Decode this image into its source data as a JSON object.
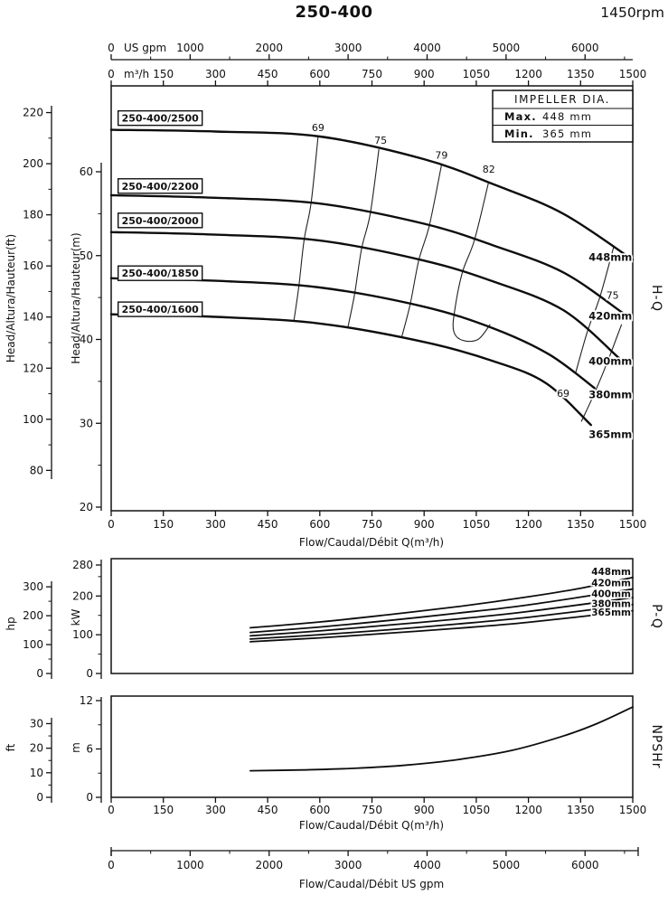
{
  "header": {
    "title": "250-400",
    "rpm": "1450rpm"
  },
  "chart_data": [
    {
      "id": "hq",
      "type": "line",
      "section_label": "H-Q",
      "x_top": {
        "unit": "US gpm",
        "min": 0,
        "max": 6604,
        "ticks": [
          0,
          1000,
          2000,
          3000,
          4000,
          5000,
          6000
        ],
        "minor": [
          500,
          1500,
          2500,
          3500,
          4500,
          5500,
          6500
        ]
      },
      "x": {
        "unit": "m³/h",
        "label": "Flow/Caudal/Débit Q(m³/h)",
        "min": 0,
        "max": 1500,
        "ticks": [
          0,
          150,
          300,
          450,
          600,
          750,
          900,
          1050,
          1200,
          1350,
          1500
        ]
      },
      "y": {
        "unit": "m",
        "label": "Head/Altura/Hauteur(m)",
        "min": 20,
        "max": 60,
        "ticks": [
          20,
          30,
          40,
          50,
          60
        ],
        "minor": [
          25,
          35,
          45,
          55
        ]
      },
      "y2": {
        "unit": "ft",
        "label": "Head/Altura/Hauteur(ft)",
        "min": 80,
        "max": 220,
        "ticks": [
          80,
          100,
          120,
          140,
          160,
          180,
          200,
          220
        ],
        "minor": [
          90,
          110,
          130,
          150,
          170,
          190,
          210
        ]
      },
      "impeller_box": {
        "title": "IMPELLER DIA.",
        "rows": [
          {
            "label": "Max.",
            "value": "448 mm"
          },
          {
            "label": "Min.",
            "value": "365 mm"
          }
        ]
      },
      "curves": [
        {
          "model": "250-400/2500",
          "impeller": "448mm",
          "model_label_pos": [
            20,
            66.4
          ],
          "impeller_label_pos": [
            1498,
            49.8
          ],
          "points": [
            [
              0,
              65
            ],
            [
              300,
              64.8
            ],
            [
              600,
              64.2
            ],
            [
              900,
              61.5
            ],
            [
              1100,
              58.5
            ],
            [
              1300,
              55
            ],
            [
              1500,
              49.5
            ]
          ]
        },
        {
          "model": "250-400/2200",
          "impeller": "420mm",
          "model_label_pos": [
            20,
            58.3
          ],
          "impeller_label_pos": [
            1498,
            42.8
          ],
          "points": [
            [
              0,
              57.2
            ],
            [
              300,
              56.9
            ],
            [
              600,
              56.2
            ],
            [
              900,
              53.8
            ],
            [
              1100,
              51.2
            ],
            [
              1300,
              48
            ],
            [
              1470,
              43.2
            ]
          ]
        },
        {
          "model": "250-400/2000",
          "impeller": "400mm",
          "model_label_pos": [
            20,
            54.2
          ],
          "impeller_label_pos": [
            1498,
            37.4
          ],
          "points": [
            [
              0,
              52.8
            ],
            [
              300,
              52.5
            ],
            [
              600,
              51.8
            ],
            [
              900,
              49.4
            ],
            [
              1100,
              46.9
            ],
            [
              1300,
              43.5
            ],
            [
              1460,
              37.8
            ]
          ]
        },
        {
          "model": "250-400/1850",
          "impeller": "380mm",
          "model_label_pos": [
            20,
            47.9
          ],
          "impeller_label_pos": [
            1498,
            33.4
          ],
          "points": [
            [
              0,
              47.3
            ],
            [
              300,
              47
            ],
            [
              600,
              46.2
            ],
            [
              900,
              43.9
            ],
            [
              1100,
              41.3
            ],
            [
              1260,
              38.2
            ],
            [
              1390,
              34.2
            ]
          ]
        },
        {
          "model": "250-400/1600",
          "impeller": "365mm",
          "model_label_pos": [
            20,
            43.6
          ],
          "impeller_label_pos": [
            1498,
            28.7
          ],
          "points": [
            [
              0,
              43
            ],
            [
              300,
              42.7
            ],
            [
              600,
              41.9
            ],
            [
              900,
              39.7
            ],
            [
              1100,
              37.4
            ],
            [
              1250,
              34.8
            ],
            [
              1380,
              29.8
            ]
          ]
        }
      ],
      "efficiency_contours": [
        {
          "label": "69",
          "label_pos": [
            595,
            65.3
          ],
          "points": [
            [
              595,
              64.2
            ],
            [
              575,
              56.3
            ],
            [
              555,
              51.9
            ],
            [
              540,
              46.4
            ],
            [
              525,
              42.1
            ]
          ]
        },
        {
          "label": "75",
          "label_pos": [
            775,
            63.8
          ],
          "points": [
            [
              770,
              62.7
            ],
            [
              745,
              55.0
            ],
            [
              720,
              50.8
            ],
            [
              700,
              45.4
            ],
            [
              680,
              41.3
            ]
          ]
        },
        {
          "label": "79",
          "label_pos": [
            950,
            62.0
          ],
          "points": [
            [
              950,
              60.8
            ],
            [
              915,
              53.6
            ],
            [
              885,
              49.5
            ],
            [
              860,
              44.2
            ],
            [
              835,
              40.2
            ]
          ]
        },
        {
          "label": "82",
          "label_pos": [
            1086,
            60.3
          ],
          "points": [
            [
              1085,
              58.7
            ],
            [
              1045,
              51.9
            ],
            [
              1010,
              48.0
            ],
            [
              988,
              43.5
            ],
            [
              985,
              41.0
            ],
            [
              1010,
              39.9
            ],
            [
              1055,
              40.0
            ],
            [
              1090,
              41.8
            ]
          ]
        },
        {
          "label": "75",
          "label_pos": [
            1442,
            45.3
          ],
          "points": [
            [
              1445,
              51.0
            ],
            [
              1405,
              45.0
            ],
            [
              1370,
              41.0
            ],
            [
              1335,
              35.9
            ]
          ]
        },
        {
          "label": "69",
          "label_pos": [
            1300,
            33.6
          ],
          "points": [
            [
              1468,
              41.8
            ],
            [
              1428,
              37.4
            ],
            [
              1388,
              33.4
            ],
            [
              1352,
              30.2
            ]
          ]
        }
      ]
    },
    {
      "id": "pq",
      "type": "line",
      "section_label": "P-Q",
      "y": {
        "unit": "kW",
        "min": 0,
        "max": 280,
        "ticks": [
          0,
          100,
          200,
          280
        ],
        "minor": [
          50,
          150,
          250
        ]
      },
      "y2": {
        "unit": "hp",
        "min": 0,
        "max": 300,
        "ticks": [
          0,
          100,
          200,
          300
        ],
        "minor": [
          50,
          150,
          250
        ]
      },
      "curves": [
        {
          "impeller": "448mm",
          "label_kw": 263,
          "points": [
            [
              400,
              118
            ],
            [
              600,
              133
            ],
            [
              800,
              152
            ],
            [
              1000,
              173
            ],
            [
              1200,
              198
            ],
            [
              1350,
              220
            ],
            [
              1500,
              248
            ]
          ]
        },
        {
          "impeller": "420mm",
          "label_kw": 233,
          "points": [
            [
              400,
              106
            ],
            [
              600,
              120
            ],
            [
              800,
              137
            ],
            [
              1000,
              156
            ],
            [
              1200,
              177
            ],
            [
              1500,
              218
            ]
          ]
        },
        {
          "impeller": "400mm",
          "label_kw": 205,
          "points": [
            [
              400,
              97
            ],
            [
              600,
              110
            ],
            [
              800,
              125
            ],
            [
              1000,
              141
            ],
            [
              1200,
              160
            ],
            [
              1500,
              196
            ]
          ]
        },
        {
          "impeller": "380mm",
          "label_kw": 180,
          "points": [
            [
              400,
              89
            ],
            [
              600,
              100
            ],
            [
              800,
              113
            ],
            [
              1000,
              128
            ],
            [
              1200,
              145
            ],
            [
              1500,
              178
            ]
          ]
        },
        {
          "impeller": "365mm",
          "label_kw": 157,
          "points": [
            [
              400,
              82
            ],
            [
              600,
              92
            ],
            [
              800,
              104
            ],
            [
              1000,
              117
            ],
            [
              1200,
              132
            ],
            [
              1500,
              162
            ]
          ]
        }
      ]
    },
    {
      "id": "npshr",
      "type": "line",
      "section_label": "NPSHr",
      "x": {
        "unit": "m³/h",
        "label": "Flow/Caudal/Débit Q(m³/h)",
        "min": 0,
        "max": 1500,
        "ticks": [
          0,
          150,
          300,
          450,
          600,
          750,
          900,
          1050,
          1200,
          1350,
          1500
        ]
      },
      "y": {
        "unit": "m",
        "min": 0,
        "max": 12,
        "ticks": [
          0,
          6,
          12
        ],
        "minor": [
          3,
          9
        ]
      },
      "y2": {
        "unit": "ft",
        "min": 0,
        "max": 30,
        "ticks": [
          0,
          10,
          20,
          30
        ],
        "minor": [
          5,
          15,
          25
        ]
      },
      "curve": {
        "points": [
          [
            400,
            3.3
          ],
          [
            550,
            3.4
          ],
          [
            700,
            3.6
          ],
          [
            850,
            4.0
          ],
          [
            1000,
            4.7
          ],
          [
            1150,
            5.8
          ],
          [
            1300,
            7.6
          ],
          [
            1400,
            9.2
          ],
          [
            1500,
            11.2
          ]
        ]
      }
    },
    {
      "id": "usgpm_axis",
      "type": "axis",
      "label": "Flow/Caudal/Débit  US gpm",
      "unit": "US gpm",
      "min": 0,
      "max": 6604,
      "ticks": [
        0,
        1000,
        2000,
        3000,
        4000,
        5000,
        6000
      ],
      "minor": [
        500,
        1500,
        2500,
        3500,
        4500,
        5500,
        6500
      ]
    }
  ]
}
